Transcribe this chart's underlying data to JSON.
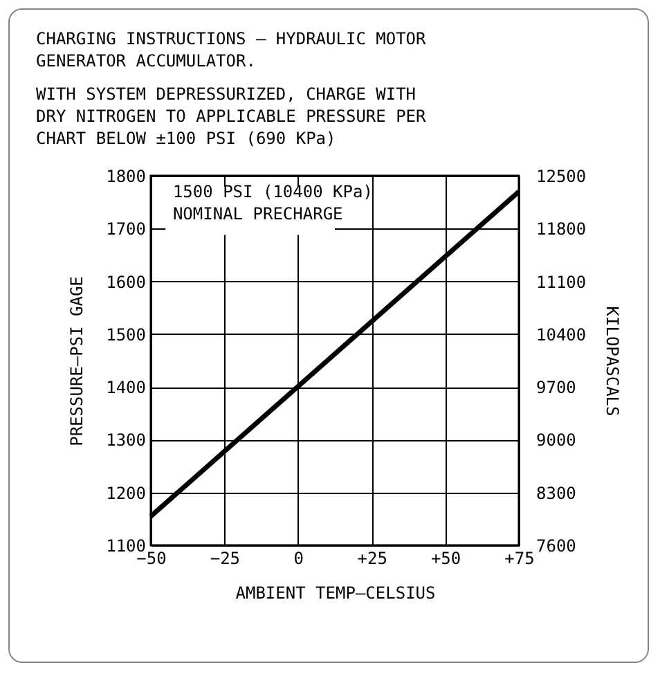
{
  "chart_data": {
    "type": "line",
    "title": "CHARGING INSTRUCTIONS — HYDRAULIC MOTOR GENERATOR ACCUMULATOR.",
    "subtitle": "WITH SYSTEM DEPRESSURIZED, CHARGE WITH DRY NITROGEN TO APPLICABLE PRESSURE PER CHART BELOW ±100 PSI (690 KPa)",
    "xlabel": "AMBIENT TEMP—CELSIUS",
    "ylabel": "PRESSURE—PSI GAGE",
    "y2label": "KILOPASCALS",
    "annotations": [
      "1500 PSI (10400 KPa) NOMINAL PRECHARGE"
    ],
    "x": [
      -50,
      75
    ],
    "series": [
      {
        "color": "#000000",
        "values": [
          1155,
          1770
        ]
      }
    ],
    "xlim": [
      -50,
      75
    ],
    "xticks": [
      {
        "value": -50,
        "label": "−50"
      },
      {
        "value": -25,
        "label": "−25"
      },
      0,
      {
        "value": 25,
        "label": "+25"
      },
      {
        "value": 50,
        "label": "+50"
      },
      {
        "value": 75,
        "label": "+75"
      }
    ],
    "ylim": [
      1100,
      1800
    ],
    "yticks": [
      1100,
      1200,
      1300,
      1400,
      1500,
      1600,
      1700,
      1800
    ],
    "y2lim": [
      7600,
      12500
    ],
    "y2ticks": [
      7600,
      8300,
      9000,
      9700,
      10400,
      11100,
      11800,
      12500
    ],
    "grid": true,
    "marker": "none",
    "line_style": "solid"
  }
}
